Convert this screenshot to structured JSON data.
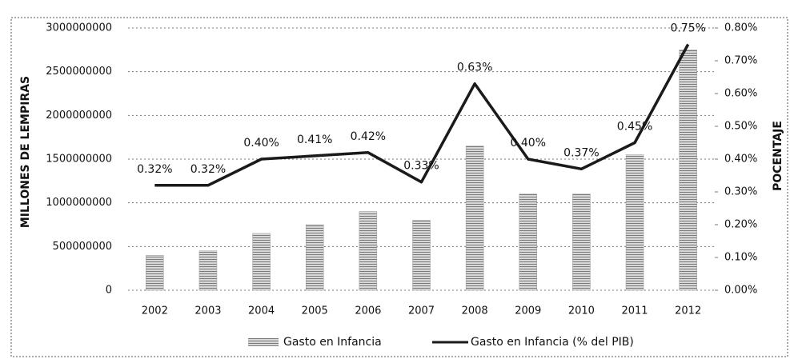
{
  "chart_data": {
    "type": "bar-line",
    "y_label": "MILLONES DE LEMPIRAS",
    "y2_label": "POCENTAJE",
    "categories": [
      "2002",
      "2003",
      "2004",
      "2005",
      "2006",
      "2007",
      "2008",
      "2009",
      "2010",
      "2011",
      "2012"
    ],
    "series": [
      {
        "name": "Gasto en Infancia",
        "type": "bar",
        "color": "#9a9a9a",
        "values": [
          400000000,
          450000000,
          650000000,
          750000000,
          900000000,
          800000000,
          1650000000,
          1100000000,
          1100000000,
          1550000000,
          2750000000
        ]
      },
      {
        "name": "Gasto en Infancia (% del PIB)",
        "type": "line",
        "axis": "y2",
        "color": "#1a1a1a",
        "values": [
          0.32,
          0.32,
          0.4,
          0.41,
          0.42,
          0.33,
          0.63,
          0.4,
          0.37,
          0.45,
          0.75
        ],
        "value_labels": [
          "0.32%",
          "0.32%",
          "0.40%",
          "0.41%",
          "0.42%",
          "0.33%",
          "0.63%",
          "0.40%",
          "0.37%",
          "0.45%",
          "0.75%"
        ]
      }
    ],
    "ylim": [
      0,
      3000000000
    ],
    "yticks": [
      0,
      500000000,
      1000000000,
      1500000000,
      2000000000,
      2500000000,
      3000000000
    ],
    "y2lim": [
      0,
      0.8
    ],
    "y2ticks": [
      {
        "value": 0,
        "label": "0.00%"
      },
      {
        "value": 0.1,
        "label": "0.10%"
      },
      {
        "value": 0.2,
        "label": "0.20%"
      },
      {
        "value": 0.3,
        "label": "0.30%"
      },
      {
        "value": 0.4,
        "label": "0.40%"
      },
      {
        "value": 0.5,
        "label": "0.50%"
      },
      {
        "value": 0.6,
        "label": "0.60%"
      },
      {
        "value": 0.7,
        "label": "0.70%"
      },
      {
        "value": 0.8,
        "label": "0.80%"
      }
    ],
    "grid": true,
    "legend": "bottom"
  }
}
